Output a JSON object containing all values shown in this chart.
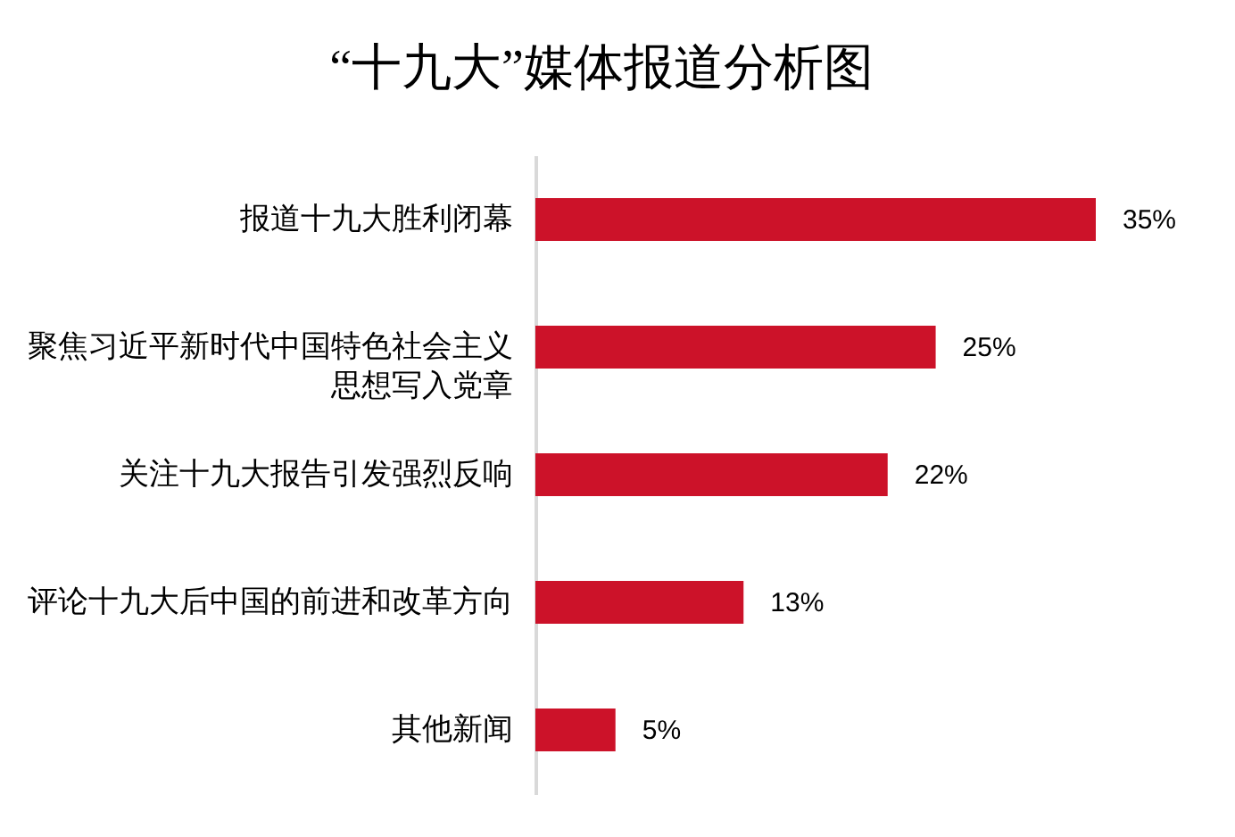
{
  "chart_data": {
    "type": "bar",
    "orientation": "horizontal",
    "title": "“十九大”媒体报道分析图",
    "categories": [
      "报道十九大胜利闭幕",
      "聚焦习近平新时代中国特色社会主义思想写入党章",
      "关注十九大报告引发强烈反响",
      "评论十九大后中国的前进和改革方向",
      "其他新闻"
    ],
    "values": [
      35,
      25,
      22,
      13,
      5
    ],
    "color": "#cc1229",
    "value_labels": [
      "35%",
      "25%",
      "22%",
      "13%",
      "5%"
    ]
  }
}
